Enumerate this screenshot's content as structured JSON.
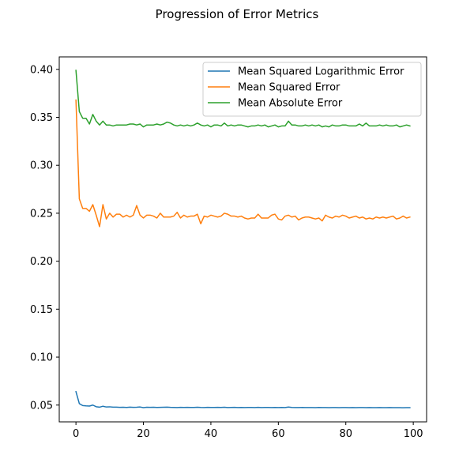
{
  "chart_data": {
    "type": "line",
    "title": "Progression of Error Metrics",
    "xlabel": "",
    "ylabel": "",
    "xlim": [
      -4.95,
      103.95
    ],
    "ylim": [
      0.0325,
      0.413
    ],
    "xticks": [
      0,
      20,
      40,
      60,
      80,
      100
    ],
    "yticks": [
      0.05,
      0.1,
      0.15,
      0.2,
      0.25,
      0.3,
      0.35,
      0.4
    ],
    "ytick_format": 2,
    "grid": false,
    "legend_position": "top-right",
    "series": [
      {
        "name": "Mean Squared Logarithmic Error",
        "color": "#1f77b4",
        "values": [
          0.064,
          0.0515,
          0.0495,
          0.0492,
          0.049,
          0.05,
          0.0483,
          0.0478,
          0.0488,
          0.048,
          0.0482,
          0.0478,
          0.0478,
          0.0476,
          0.0477,
          0.0475,
          0.0478,
          0.0476,
          0.0477,
          0.048,
          0.0473,
          0.0477,
          0.0476,
          0.0477,
          0.0475,
          0.0476,
          0.0477,
          0.0478,
          0.0476,
          0.0475,
          0.0474,
          0.0476,
          0.0475,
          0.0476,
          0.0475,
          0.0475,
          0.0477,
          0.0475,
          0.0474,
          0.0476,
          0.0475,
          0.0475,
          0.0476,
          0.0475,
          0.0477,
          0.0474,
          0.0475,
          0.0476,
          0.0474,
          0.0475,
          0.0474,
          0.0475,
          0.0475,
          0.0474,
          0.0476,
          0.0474,
          0.0475,
          0.0475,
          0.0474,
          0.0475,
          0.0474,
          0.0475,
          0.0474,
          0.0479,
          0.0475,
          0.0474,
          0.0474,
          0.0475,
          0.0474,
          0.0474,
          0.0474,
          0.0473,
          0.0475,
          0.0474,
          0.0474,
          0.0473,
          0.0474,
          0.0474,
          0.0473,
          0.0474,
          0.0474,
          0.0473,
          0.0474,
          0.0473,
          0.0474,
          0.0474,
          0.0473,
          0.0474,
          0.0473,
          0.0473,
          0.0474,
          0.0473,
          0.0473,
          0.0474,
          0.0473,
          0.0473,
          0.0473,
          0.0472,
          0.0473,
          0.0473
        ]
      },
      {
        "name": "Mean Squared Error",
        "color": "#ff7f0e",
        "values": [
          0.368,
          0.265,
          0.255,
          0.255,
          0.252,
          0.259,
          0.248,
          0.236,
          0.259,
          0.244,
          0.25,
          0.246,
          0.249,
          0.249,
          0.246,
          0.248,
          0.246,
          0.248,
          0.258,
          0.248,
          0.245,
          0.248,
          0.248,
          0.247,
          0.245,
          0.25,
          0.246,
          0.246,
          0.246,
          0.247,
          0.251,
          0.245,
          0.248,
          0.246,
          0.247,
          0.247,
          0.249,
          0.239,
          0.247,
          0.246,
          0.248,
          0.247,
          0.246,
          0.247,
          0.25,
          0.249,
          0.247,
          0.247,
          0.246,
          0.247,
          0.245,
          0.244,
          0.245,
          0.245,
          0.249,
          0.245,
          0.245,
          0.245,
          0.248,
          0.249,
          0.244,
          0.243,
          0.247,
          0.248,
          0.246,
          0.247,
          0.243,
          0.245,
          0.246,
          0.246,
          0.245,
          0.244,
          0.245,
          0.242,
          0.248,
          0.246,
          0.245,
          0.247,
          0.246,
          0.248,
          0.247,
          0.245,
          0.246,
          0.247,
          0.245,
          0.246,
          0.244,
          0.245,
          0.244,
          0.246,
          0.245,
          0.246,
          0.245,
          0.246,
          0.247,
          0.244,
          0.245,
          0.247,
          0.245,
          0.246
        ]
      },
      {
        "name": "Mean Absolute Error",
        "color": "#2ca02c",
        "values": [
          0.399,
          0.356,
          0.349,
          0.349,
          0.343,
          0.353,
          0.346,
          0.342,
          0.346,
          0.342,
          0.342,
          0.341,
          0.342,
          0.342,
          0.342,
          0.342,
          0.343,
          0.343,
          0.342,
          0.343,
          0.34,
          0.342,
          0.342,
          0.342,
          0.343,
          0.342,
          0.343,
          0.345,
          0.344,
          0.342,
          0.341,
          0.342,
          0.341,
          0.342,
          0.341,
          0.342,
          0.344,
          0.342,
          0.341,
          0.342,
          0.34,
          0.342,
          0.342,
          0.341,
          0.344,
          0.341,
          0.342,
          0.341,
          0.342,
          0.342,
          0.341,
          0.34,
          0.341,
          0.341,
          0.342,
          0.341,
          0.342,
          0.34,
          0.341,
          0.342,
          0.34,
          0.341,
          0.341,
          0.346,
          0.342,
          0.342,
          0.341,
          0.341,
          0.342,
          0.341,
          0.342,
          0.341,
          0.342,
          0.34,
          0.341,
          0.34,
          0.342,
          0.341,
          0.341,
          0.342,
          0.342,
          0.341,
          0.341,
          0.341,
          0.343,
          0.341,
          0.344,
          0.341,
          0.341,
          0.341,
          0.342,
          0.341,
          0.342,
          0.341,
          0.341,
          0.342,
          0.34,
          0.341,
          0.342,
          0.341
        ]
      }
    ]
  }
}
